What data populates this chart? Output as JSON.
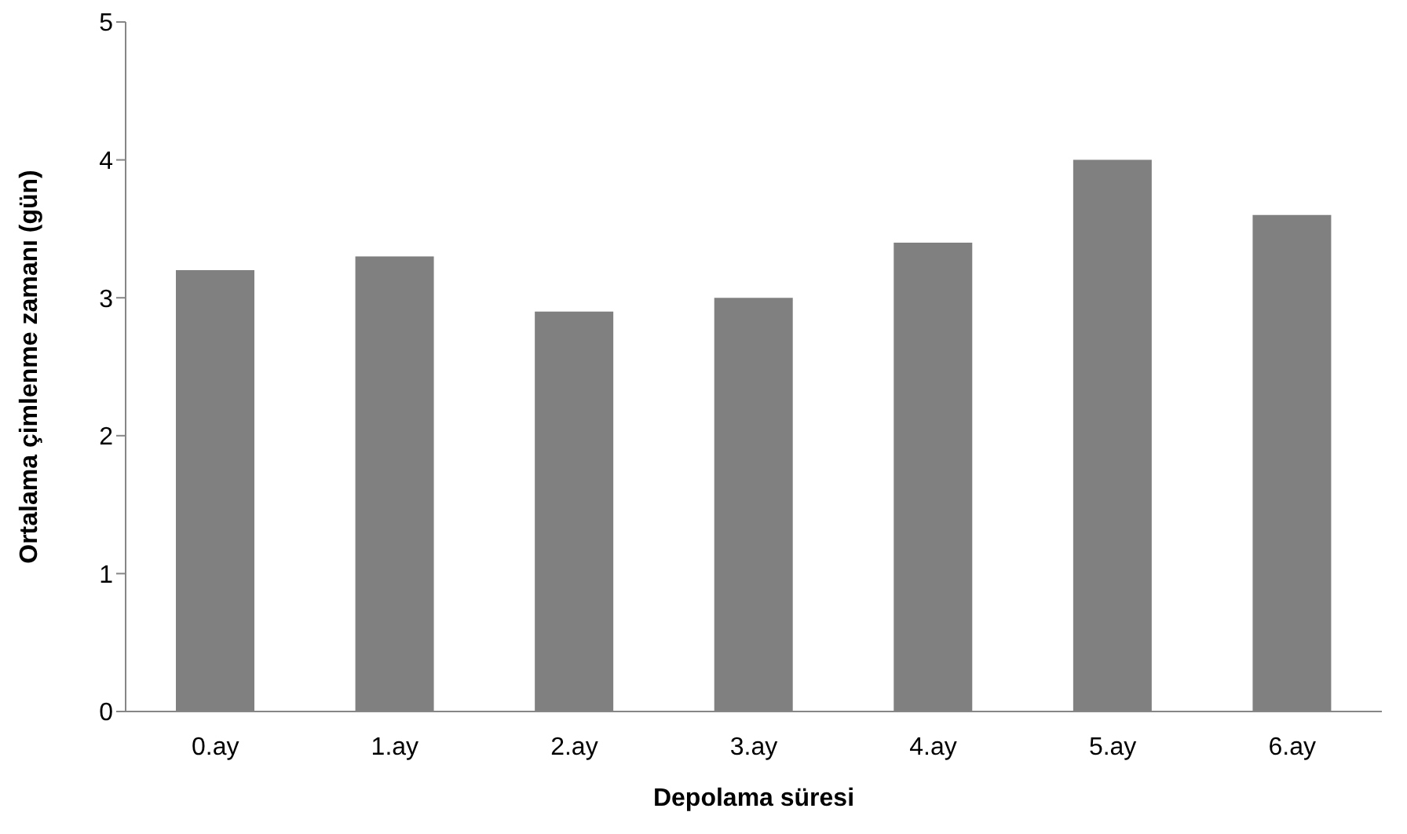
{
  "chart_data": {
    "type": "bar",
    "xlabel": "Depolama süresi",
    "ylabel": "Ortalama çimlenme zamanı (gün)",
    "categories": [
      "0.ay",
      "1.ay",
      "2.ay",
      "3.ay",
      "4.ay",
      "5.ay",
      "6.ay"
    ],
    "values": [
      3.2,
      3.3,
      2.9,
      3.0,
      3.4,
      4.0,
      3.6
    ],
    "color": "#808080",
    "ylim": [
      0,
      5
    ],
    "yticks": [
      0,
      1,
      2,
      3,
      4,
      5
    ],
    "grid": false,
    "legend": false
  }
}
